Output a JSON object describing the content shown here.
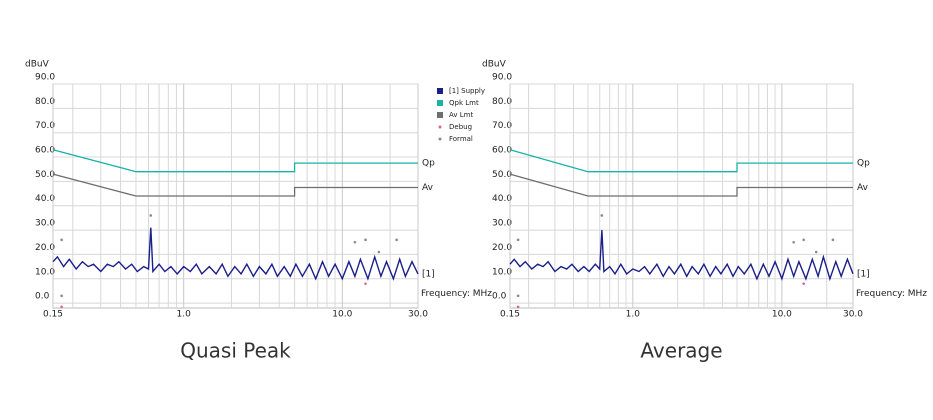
{
  "chart_data": [
    {
      "type": "line",
      "title": "Quasi Peak",
      "ylabel": "dBuV",
      "xlabel": "Frequency: MHz",
      "log_x": true,
      "grid": true,
      "legend": true,
      "xlim": [
        0.15,
        30
      ],
      "ylim": [
        -2,
        90
      ],
      "xticks": [
        0.15,
        {
          "value": 1,
          "label": "1.0"
        },
        {
          "value": 10,
          "label": "10.0"
        },
        {
          "value": 30,
          "label": "30.0"
        }
      ],
      "xminor": [
        0.2,
        0.3,
        0.4,
        0.5,
        0.6,
        0.7,
        0.8,
        0.9,
        2,
        3,
        4,
        5,
        6,
        7,
        8,
        9,
        20
      ],
      "yticks": [
        {
          "value": 0,
          "label": "0.0"
        },
        {
          "value": 10,
          "label": "10.0"
        },
        {
          "value": 20,
          "label": "20.0"
        },
        {
          "value": 30,
          "label": "30.0"
        },
        {
          "value": 40,
          "label": "40.0"
        },
        {
          "value": 50,
          "label": "50.0"
        },
        {
          "value": 60,
          "label": "60.0"
        },
        {
          "value": 70,
          "label": "70.0"
        },
        {
          "value": 80,
          "label": "80.0"
        },
        {
          "value": 90,
          "label": "90.0"
        }
      ],
      "series": [
        {
          "name": "[1] Supply",
          "end_label": "[1]",
          "color": "#1b1f8a",
          "marker": "line",
          "x": [
            0.15,
            0.16,
            0.175,
            0.19,
            0.21,
            0.23,
            0.25,
            0.27,
            0.3,
            0.33,
            0.36,
            0.39,
            0.43,
            0.47,
            0.51,
            0.56,
            0.6,
            0.62,
            0.64,
            0.7,
            0.76,
            0.83,
            0.91,
            1.0,
            1.1,
            1.2,
            1.3,
            1.45,
            1.6,
            1.75,
            1.9,
            2.1,
            2.3,
            2.5,
            2.75,
            3,
            3.3,
            3.6,
            3.9,
            4.3,
            4.7,
            5.1,
            5.6,
            6.2,
            6.8,
            7.5,
            8.2,
            9,
            10,
            11,
            12,
            13,
            14.5,
            16,
            17.5,
            19,
            21,
            23,
            25,
            27.5,
            30
          ],
          "values": [
            17,
            19,
            15,
            18,
            14,
            17,
            15,
            16,
            13,
            16,
            15,
            17,
            14,
            16,
            13,
            15,
            14,
            31,
            13,
            16,
            13,
            15,
            12,
            15,
            13,
            16,
            12,
            15,
            12,
            16,
            11,
            15,
            12,
            16,
            11,
            15,
            12,
            16,
            11,
            15,
            11,
            16,
            11,
            16,
            10,
            17,
            11,
            16,
            10,
            17,
            11,
            18,
            10,
            19,
            11,
            17,
            10,
            18,
            11,
            17,
            12
          ]
        },
        {
          "name": "Qpk Lmt",
          "end_label": "Qp",
          "color": "#19b3a8",
          "marker": "line",
          "x": [
            0.15,
            0.5,
            5,
            5,
            30
          ],
          "values": [
            63,
            54,
            54,
            57.5,
            57.5
          ]
        },
        {
          "name": "Av Lmt",
          "end_label": "Av",
          "color": "#6e6e6e",
          "marker": "line",
          "x": [
            0.15,
            0.5,
            5,
            5,
            30
          ],
          "values": [
            53,
            44,
            44,
            47.5,
            47.5
          ]
        },
        {
          "name": "Debug",
          "color": "#d9648c",
          "marker": "dot",
          "x": [
            0.17,
            14
          ],
          "values": [
            -1.5,
            8
          ]
        },
        {
          "name": "Formal",
          "color": "#8a8a8a",
          "marker": "dot",
          "x": [
            0.17,
            0.17,
            0.62,
            12,
            14,
            17,
            22
          ],
          "values": [
            26,
            3,
            36,
            25,
            26,
            21,
            26
          ]
        }
      ]
    },
    {
      "type": "line",
      "title": "Average",
      "ylabel": "dBuV",
      "xlabel": "Frequency: MHz",
      "log_x": true,
      "grid": true,
      "legend": false,
      "xlim": [
        0.15,
        30
      ],
      "ylim": [
        -2,
        90
      ],
      "xticks": [
        0.15,
        {
          "value": 1,
          "label": "1.0"
        },
        {
          "value": 10,
          "label": "10.0"
        },
        {
          "value": 30,
          "label": "30.0"
        }
      ],
      "xminor": [
        0.2,
        0.3,
        0.4,
        0.5,
        0.6,
        0.7,
        0.8,
        0.9,
        2,
        3,
        4,
        5,
        6,
        7,
        8,
        9,
        20
      ],
      "yticks": [
        {
          "value": 0,
          "label": "0.0"
        },
        {
          "value": 10,
          "label": "10.0"
        },
        {
          "value": 20,
          "label": "20.0"
        },
        {
          "value": 30,
          "label": "30.0"
        },
        {
          "value": 40,
          "label": "40.0"
        },
        {
          "value": 50,
          "label": "50.0"
        },
        {
          "value": 60,
          "label": "60.0"
        },
        {
          "value": 70,
          "label": "70.0"
        },
        {
          "value": 80,
          "label": "80.0"
        },
        {
          "value": 90,
          "label": "90.0"
        }
      ],
      "series": [
        {
          "end_label": "[1]",
          "color": "#1b1f8a",
          "marker": "line",
          "x": [
            0.15,
            0.16,
            0.175,
            0.19,
            0.21,
            0.23,
            0.25,
            0.27,
            0.3,
            0.33,
            0.36,
            0.39,
            0.43,
            0.47,
            0.51,
            0.56,
            0.6,
            0.62,
            0.64,
            0.7,
            0.76,
            0.83,
            0.91,
            1.0,
            1.1,
            1.2,
            1.3,
            1.45,
            1.6,
            1.75,
            1.9,
            2.1,
            2.3,
            2.5,
            2.75,
            3,
            3.3,
            3.6,
            3.9,
            4.3,
            4.7,
            5.1,
            5.6,
            6.2,
            6.8,
            7.5,
            8.2,
            9,
            10,
            11,
            12,
            13,
            14.5,
            16,
            17.5,
            19,
            21,
            23,
            25,
            27.5,
            30
          ],
          "values": [
            16,
            18,
            15,
            17,
            14,
            16,
            15,
            17,
            13,
            15,
            14,
            16,
            13,
            15,
            13,
            16,
            14,
            30,
            13,
            15,
            12,
            16,
            12,
            14,
            13,
            15,
            12,
            16,
            11,
            15,
            12,
            16,
            11,
            15,
            12,
            16,
            11,
            15,
            12,
            16,
            11,
            15,
            12,
            16,
            10,
            16,
            11,
            17,
            10,
            18,
            11,
            17,
            10,
            18,
            11,
            19,
            10,
            17,
            11,
            18,
            12
          ]
        },
        {
          "end_label": "Qp",
          "color": "#19b3a8",
          "marker": "line",
          "x": [
            0.15,
            0.5,
            5,
            5,
            30
          ],
          "values": [
            63,
            54,
            54,
            57.5,
            57.5
          ]
        },
        {
          "end_label": "Av",
          "color": "#6e6e6e",
          "marker": "line",
          "x": [
            0.15,
            0.5,
            5,
            5,
            30
          ],
          "values": [
            53,
            44,
            44,
            47.5,
            47.5
          ]
        },
        {
          "color": "#d9648c",
          "marker": "dot",
          "x": [
            0.17,
            14
          ],
          "values": [
            -1.5,
            8
          ]
        },
        {
          "color": "#8a8a8a",
          "marker": "dot",
          "x": [
            0.17,
            0.17,
            0.62,
            12,
            14,
            17,
            22
          ],
          "values": [
            26,
            3,
            36,
            25,
            26,
            21,
            26
          ]
        }
      ]
    }
  ]
}
